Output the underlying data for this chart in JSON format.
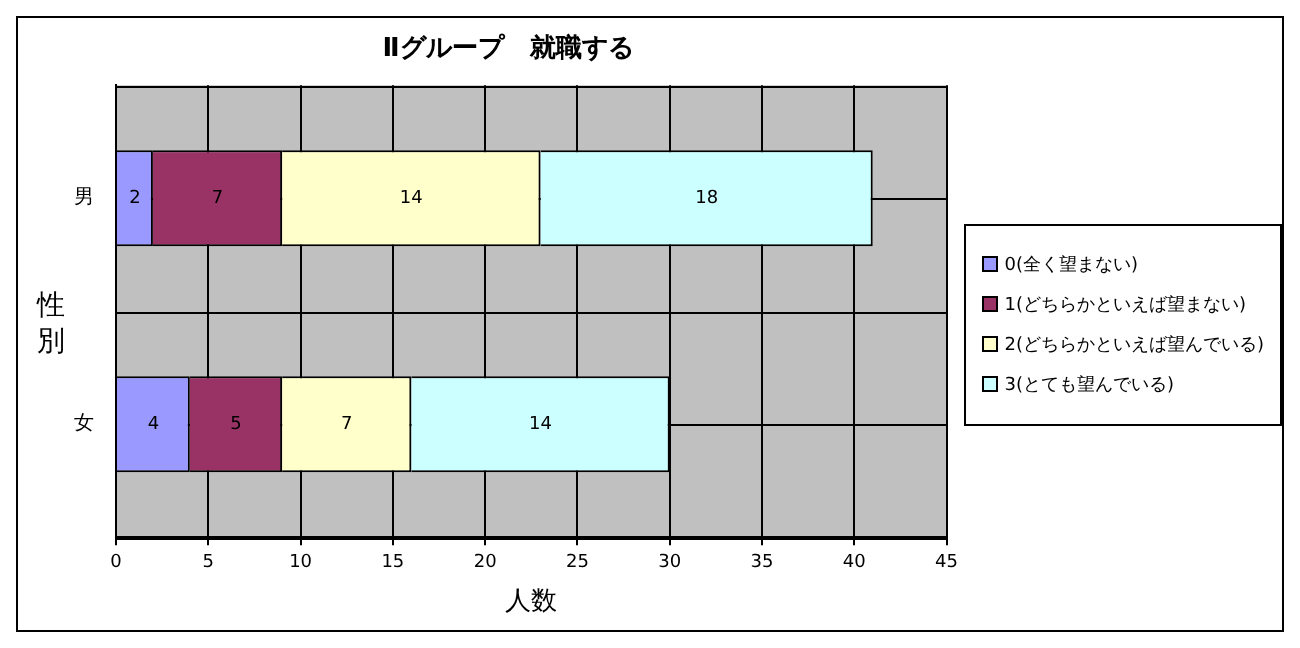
{
  "chart_data": {
    "type": "bar",
    "orientation": "horizontal",
    "stacked": true,
    "title": "Ⅱグループ　就職する",
    "xlabel": "人数",
    "ylabel": "性別",
    "categories": [
      "男",
      "女"
    ],
    "series": [
      {
        "name": "0(全く望まない)",
        "color": "#9999ff",
        "values": [
          2,
          4
        ]
      },
      {
        "name": "1(どちらかといえば望まない)",
        "color": "#993366",
        "values": [
          7,
          5
        ]
      },
      {
        "name": "2(どちらかといえば望んでいる)",
        "color": "#ffffcc",
        "values": [
          14,
          7
        ]
      },
      {
        "name": "3(とても望んでいる)",
        "color": "#ccffff",
        "values": [
          18,
          14
        ]
      }
    ],
    "xlim": [
      0,
      45
    ],
    "xticks": [
      0,
      5,
      10,
      15,
      20,
      25,
      30,
      35,
      40,
      45
    ],
    "grid": true,
    "legend": "right",
    "data_labels": true
  }
}
